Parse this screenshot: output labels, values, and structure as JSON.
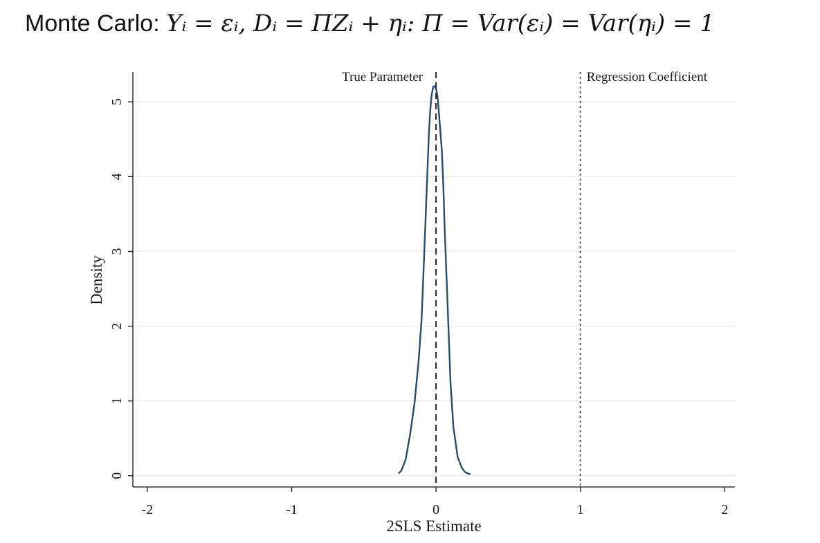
{
  "title": {
    "lead": "Monte Carlo: ",
    "equation": "Yᵢ = εᵢ, Dᵢ = ΠZᵢ + ηᵢ: Π = Var(εᵢ) = Var(ηᵢ) = 1"
  },
  "chart_data": {
    "type": "line",
    "xlabel": "2SLS Estimate",
    "ylabel": "Density",
    "xlim": [
      -2.1,
      2.07
    ],
    "ylim": [
      -0.15,
      5.4
    ],
    "xticks": [
      -2,
      -1,
      0,
      1,
      2
    ],
    "xtick_labels": [
      "-2",
      "-1",
      "0",
      "1",
      "2"
    ],
    "yticks": [
      0,
      1,
      2,
      3,
      4,
      5
    ],
    "ytick_labels": [
      "0",
      "1",
      "2",
      "3",
      "4",
      "5"
    ],
    "grid": "horizontal",
    "series": [
      {
        "color": "#2b4a66",
        "x": [
          -0.26,
          -0.24,
          -0.21,
          -0.18,
          -0.15,
          -0.12,
          -0.1,
          -0.08,
          -0.06,
          -0.05,
          -0.04,
          -0.03,
          -0.02,
          -0.01,
          0.0,
          0.01,
          0.02,
          0.03,
          0.04,
          0.05,
          0.06,
          0.08,
          0.1,
          0.12,
          0.15,
          0.18,
          0.2,
          0.22,
          0.24
        ],
        "y": [
          0.03,
          0.07,
          0.22,
          0.55,
          0.95,
          1.55,
          2.1,
          3.05,
          4.05,
          4.55,
          4.9,
          5.1,
          5.2,
          5.21,
          5.18,
          5.08,
          4.85,
          4.6,
          4.35,
          3.9,
          3.3,
          2.3,
          1.25,
          0.65,
          0.25,
          0.1,
          0.05,
          0.03,
          0.02
        ]
      }
    ],
    "reference_lines": [
      {
        "x": 0,
        "style": "dashed",
        "label": "True Parameter",
        "label_side": "left"
      },
      {
        "x": 1,
        "style": "dotted",
        "label": "Regression Coefficient",
        "label_side": "right"
      }
    ]
  }
}
